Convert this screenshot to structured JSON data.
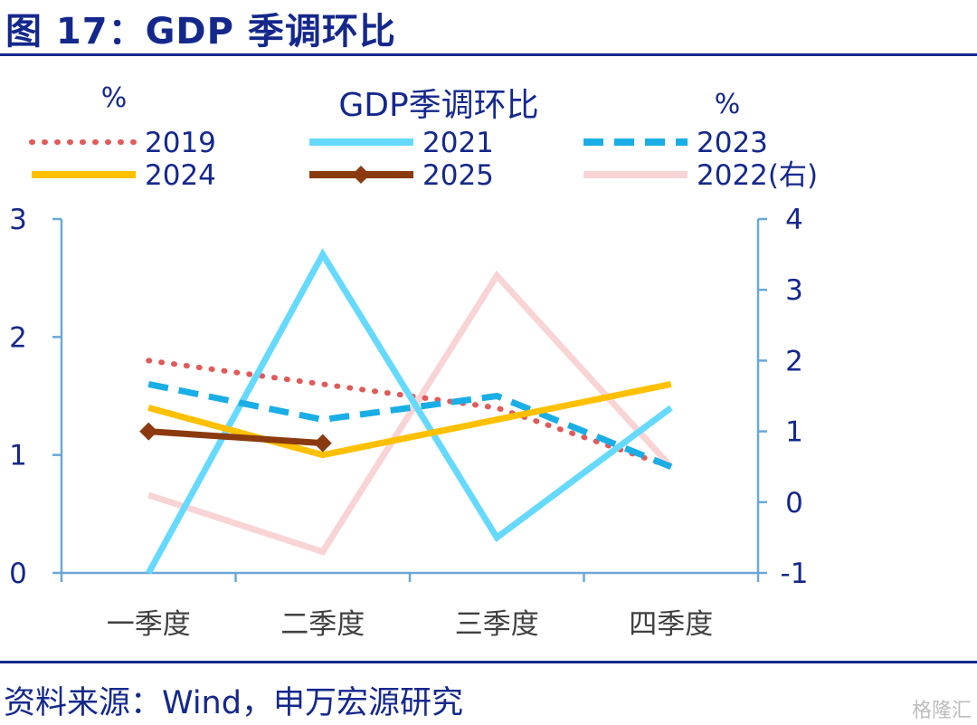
{
  "figure_title": "图 17：GDP 季调环比",
  "source": "资料来源：Wind，申万宏源研究",
  "watermark": "格隆汇",
  "chart_data": {
    "type": "line",
    "title": "GDP季调环比",
    "ylabel_left": "%",
    "ylabel_right": "%",
    "categories": [
      "一季度",
      "二季度",
      "三季度",
      "四季度"
    ],
    "ylim_left": [
      0,
      3
    ],
    "yticks_left": [
      "0",
      "1",
      "2",
      "3"
    ],
    "ylim_right": [
      -1,
      4
    ],
    "yticks_right": [
      "-1",
      "0",
      "1",
      "2",
      "3",
      "4"
    ],
    "grid": false,
    "legend_position": "top",
    "series": [
      {
        "name": "2019",
        "axis": "left",
        "color": "#e05a5a",
        "style": "dotted",
        "values": [
          1.8,
          1.6,
          1.4,
          0.9
        ]
      },
      {
        "name": "2021",
        "axis": "left",
        "color": "#66d9ff",
        "style": "solid",
        "values": [
          0.0,
          2.7,
          0.3,
          1.4
        ]
      },
      {
        "name": "2023",
        "axis": "left",
        "color": "#1aaee6",
        "style": "dashed",
        "values": [
          1.6,
          1.3,
          1.5,
          0.9
        ]
      },
      {
        "name": "2024",
        "axis": "left",
        "color": "#ffc000",
        "style": "solid",
        "values": [
          1.4,
          1.0,
          1.3,
          1.6
        ]
      },
      {
        "name": "2025",
        "axis": "left",
        "color": "#8b3a0f",
        "style": "solid-diamond",
        "values": [
          1.2,
          1.1,
          null,
          null
        ]
      },
      {
        "name": "2022(右)",
        "axis": "right",
        "color": "#f9d4d4",
        "style": "solid",
        "values": [
          0.1,
          -0.7,
          3.2,
          0.5
        ]
      }
    ]
  }
}
